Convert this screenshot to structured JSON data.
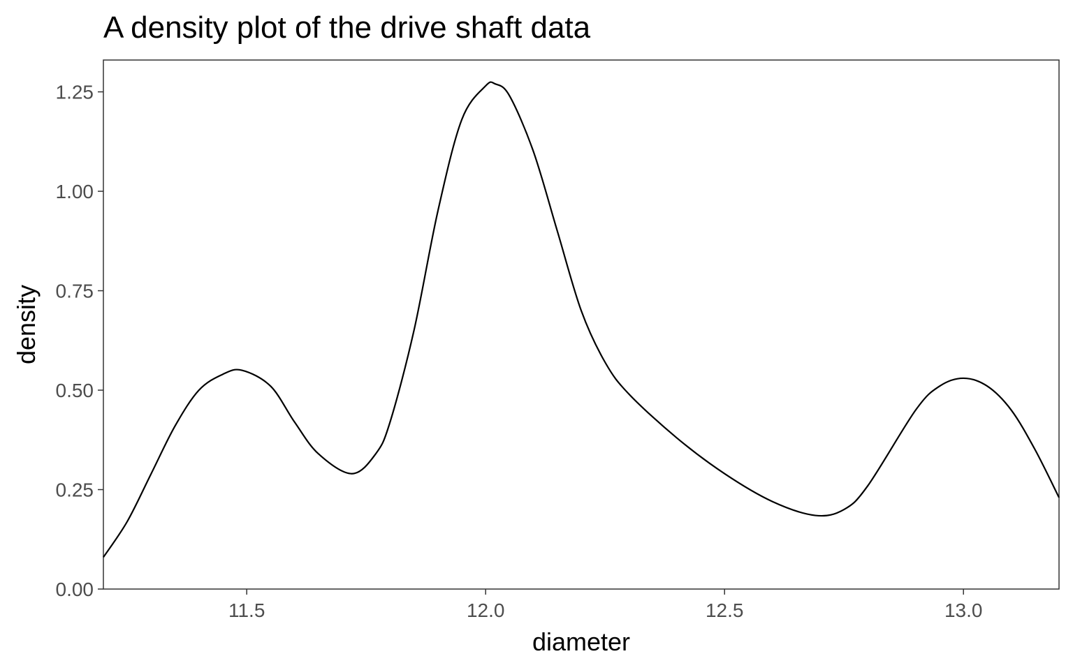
{
  "chart_data": {
    "type": "line",
    "title": "A density plot of the drive shaft data",
    "xlabel": "diameter",
    "ylabel": "density",
    "xlim": [
      11.2,
      13.2
    ],
    "ylim": [
      0,
      1.33
    ],
    "grid": false,
    "legend": "none",
    "line_color": "#000000",
    "x_ticks": [
      {
        "value": 11.5,
        "label": "11.5"
      },
      {
        "value": 12.0,
        "label": "12.0"
      },
      {
        "value": 12.5,
        "label": "12.5"
      },
      {
        "value": 13.0,
        "label": "13.0"
      }
    ],
    "y_ticks": [
      {
        "value": 0.0,
        "label": "0.00"
      },
      {
        "value": 0.25,
        "label": "0.25"
      },
      {
        "value": 0.5,
        "label": "0.50"
      },
      {
        "value": 0.75,
        "label": "0.75"
      },
      {
        "value": 1.0,
        "label": "1.00"
      },
      {
        "value": 1.25,
        "label": "1.25"
      }
    ],
    "series": [
      {
        "x": [
          11.2,
          11.25,
          11.3,
          11.35,
          11.4,
          11.45,
          11.49,
          11.55,
          11.6,
          11.65,
          11.72,
          11.77,
          11.8,
          11.85,
          11.9,
          11.95,
          12.0,
          12.02,
          12.05,
          12.1,
          12.15,
          12.2,
          12.25,
          12.3,
          12.4,
          12.5,
          12.6,
          12.69,
          12.75,
          12.8,
          12.9,
          12.95,
          13.0,
          13.05,
          13.1,
          13.15,
          13.2
        ],
        "y": [
          0.08,
          0.17,
          0.29,
          0.41,
          0.5,
          0.54,
          0.55,
          0.51,
          0.42,
          0.34,
          0.29,
          0.34,
          0.42,
          0.65,
          0.95,
          1.18,
          1.265,
          1.27,
          1.24,
          1.1,
          0.9,
          0.7,
          0.57,
          0.49,
          0.38,
          0.29,
          0.22,
          0.185,
          0.2,
          0.26,
          0.45,
          0.51,
          0.53,
          0.51,
          0.45,
          0.35,
          0.23
        ]
      }
    ]
  }
}
